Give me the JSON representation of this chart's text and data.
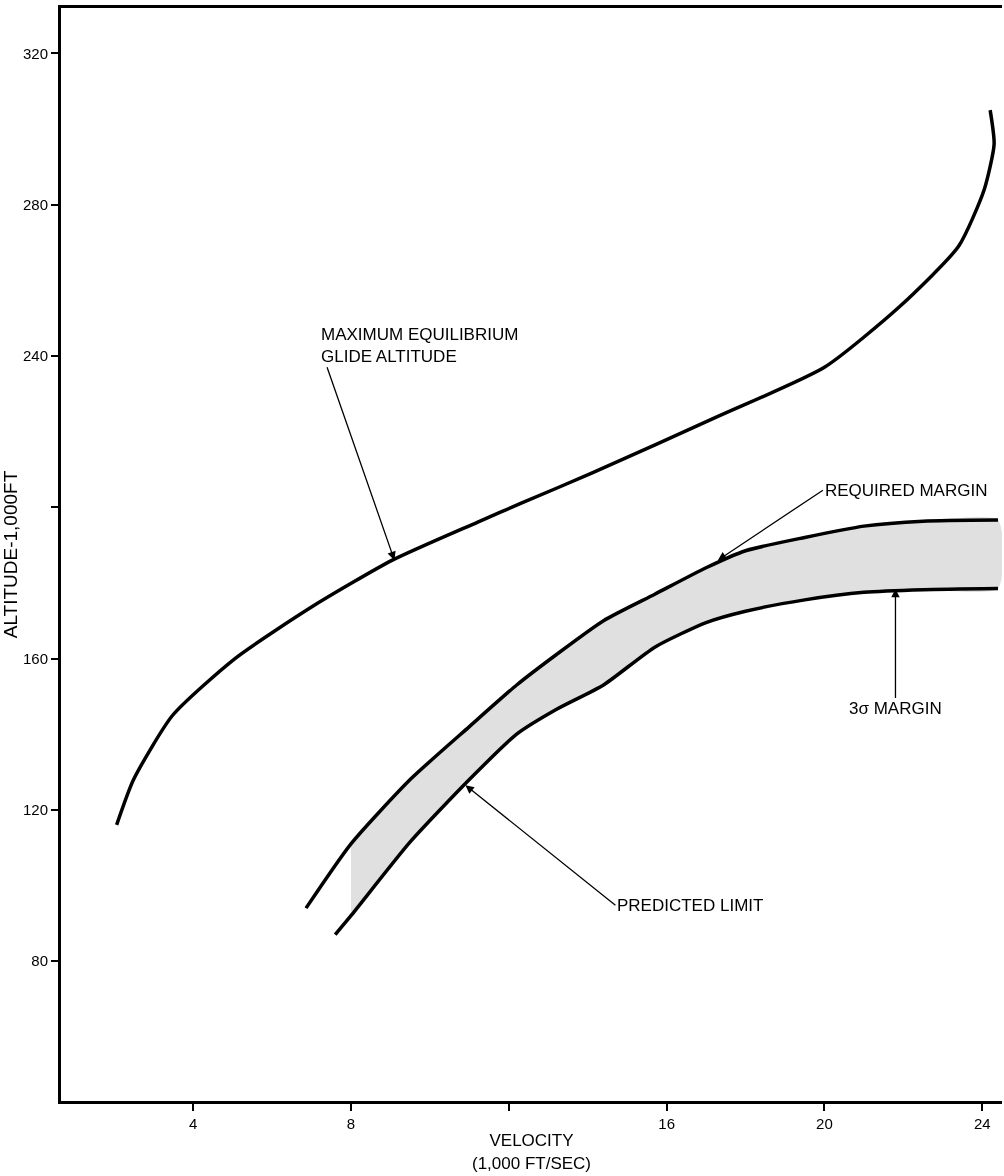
{
  "chart_data": {
    "type": "line",
    "xlabel": "VELOCITY\n(1,000 FT/SEC)",
    "ylabel": "ALTITUDE-1,000FT",
    "xlim": [
      0.65,
      24.5
    ],
    "ylim": [
      43,
      332
    ],
    "xticks": [
      4,
      8,
      {
        "value": 12,
        "label": null
      },
      16,
      20,
      24
    ],
    "yticks": [
      80,
      120,
      160,
      {
        "value": 200,
        "label": null
      },
      240,
      280,
      320
    ],
    "grid": false,
    "marker": "none",
    "line_style": "solid",
    "series": [
      {
        "type": "line",
        "color": "#000000",
        "x": [
          2.06,
          2.49,
          3.48,
          5.06,
          7.06,
          9.05,
          11.2,
          12.3,
          14.1,
          17.3,
          20.0,
          21.9,
          23.4,
          24.05,
          24.3,
          24.2
        ],
        "values": [
          116,
          128,
          145,
          160,
          174,
          186,
          196,
          201,
          209,
          224,
          237,
          253,
          269,
          284,
          296,
          305
        ]
      },
      {
        "type": "line",
        "color": "#000000",
        "x": [
          7.6,
          8.0,
          9.5,
          11.0,
          12.2,
          13.2,
          14.4,
          15.7,
          17.0,
          18.0,
          19.5,
          21.0,
          22.5,
          24.4
        ],
        "values": [
          87,
          92,
          111.5,
          128,
          140,
          146.5,
          153,
          163,
          169.5,
          172.5,
          175.5,
          177.5,
          178.2,
          178.5
        ]
      },
      {
        "type": "line",
        "color": "#000000",
        "x": [
          6.86,
          8.0,
          9.5,
          11.0,
          12.2,
          13.2,
          14.4,
          15.7,
          17.0,
          18.0,
          19.5,
          21.0,
          22.5,
          24.4
        ],
        "values": [
          94,
          111,
          128,
          142,
          153,
          161,
          170,
          177,
          184,
          188.5,
          192,
          195,
          196.3,
          196.6
        ],
        "lower": [
          null,
          92,
          111.5,
          128,
          140,
          146.5,
          153,
          163,
          169.5,
          172.5,
          175.5,
          177.5,
          178.2,
          178.5
        ],
        "upper": [
          null,
          111,
          128,
          142,
          153,
          161,
          170,
          177,
          184,
          188.5,
          192,
          195,
          196.3,
          196.6
        ]
      }
    ],
    "annotations": [
      {
        "text": "MAXIMUM EQUILIBRIUM\nGLIDE ALTITUDE",
        "x": 9.1,
        "y": 186
      },
      {
        "text": "REQUIRED MARGIN",
        "x": 17.3,
        "y": 186
      },
      {
        "text": "3σ MARGIN",
        "x": 21.8,
        "y": 178.4
      },
      {
        "text": "PREDICTED LIMIT",
        "x": 10.9,
        "y": 126.5
      }
    ]
  }
}
